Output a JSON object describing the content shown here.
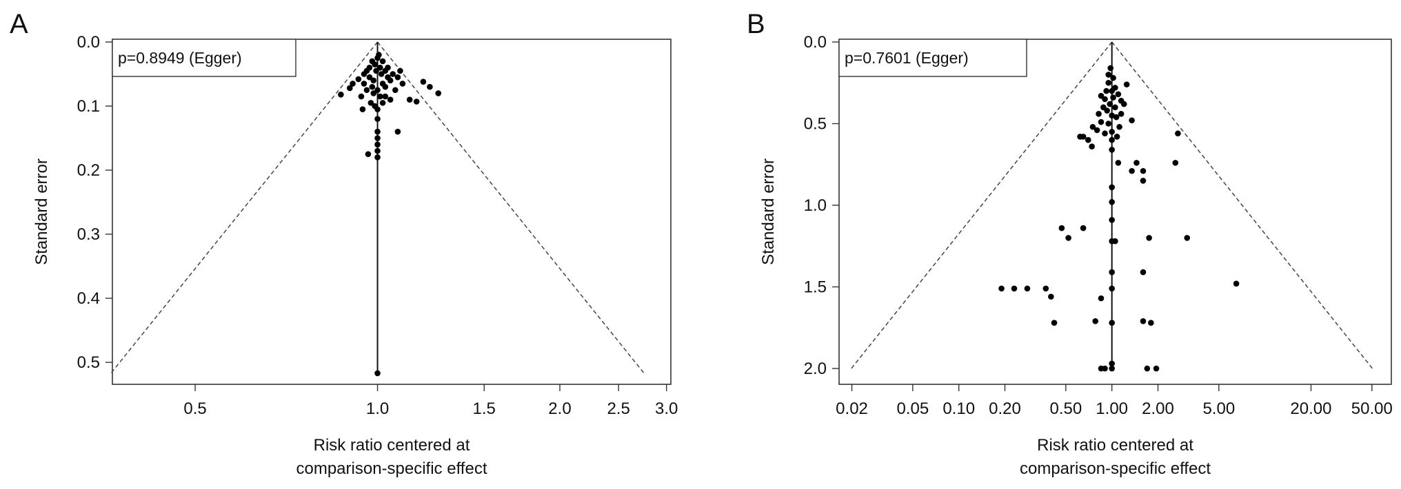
{
  "chart_data": [
    {
      "panel_label": "A",
      "type": "scatter",
      "subtype": "funnel plot",
      "annotation": "p=0.8949 (Egger)",
      "xlabel": [
        "Risk ratio centered at",
        "comparison-specific effect"
      ],
      "ylabel": "Standard error",
      "x_scale": "log",
      "xlim": [
        0.365,
        3.05
      ],
      "ylim": [
        0.0,
        0.53
      ],
      "y_inverted": true,
      "xticks": [
        0.5,
        1.0,
        1.5,
        2.0,
        2.5,
        3.0
      ],
      "xtick_labels": [
        "0.5",
        "1.0",
        "1.5",
        "2.0",
        "2.5",
        "3.0"
      ],
      "yticks": [
        0.0,
        0.1,
        0.2,
        0.3,
        0.4,
        0.5
      ],
      "ytick_labels": [
        "0.0",
        "0.1",
        "0.2",
        "0.3",
        "0.4",
        "0.5"
      ],
      "funnel": {
        "center": 1.0,
        "apex_se": 0.0,
        "base_se": 0.517
      },
      "points": [
        [
          1.0,
          0.517
        ],
        [
          1.0,
          0.18
        ],
        [
          1.0,
          0.17
        ],
        [
          1.0,
          0.16
        ],
        [
          1.0,
          0.15
        ],
        [
          1.0,
          0.14
        ],
        [
          1.0,
          0.12
        ],
        [
          1.0,
          0.105
        ],
        [
          0.965,
          0.175
        ],
        [
          1.08,
          0.14
        ],
        [
          0.945,
          0.105
        ],
        [
          0.87,
          0.082
        ],
        [
          0.9,
          0.072
        ],
        [
          0.91,
          0.065
        ],
        [
          0.93,
          0.058
        ],
        [
          0.95,
          0.05
        ],
        [
          0.96,
          0.045
        ],
        [
          0.94,
          0.085
        ],
        [
          0.975,
          0.095
        ],
        [
          0.99,
          0.1
        ],
        [
          1.02,
          0.095
        ],
        [
          1.05,
          0.09
        ],
        [
          1.13,
          0.09
        ],
        [
          1.16,
          0.093
        ],
        [
          1.19,
          0.062
        ],
        [
          1.22,
          0.07
        ],
        [
          1.26,
          0.08
        ],
        [
          1.1,
          0.065
        ],
        [
          1.07,
          0.075
        ],
        [
          1.04,
          0.055
        ],
        [
          1.06,
          0.05
        ],
        [
          1.03,
          0.045
        ],
        [
          1.01,
          0.04
        ],
        [
          0.99,
          0.035
        ],
        [
          0.98,
          0.03
        ],
        [
          1.0,
          0.025
        ],
        [
          1.02,
          0.03
        ],
        [
          1.005,
          0.02
        ],
        [
          0.995,
          0.045
        ],
        [
          0.97,
          0.055
        ],
        [
          0.95,
          0.065
        ],
        [
          0.96,
          0.075
        ],
        [
          0.985,
          0.08
        ],
        [
          1.01,
          0.085
        ],
        [
          1.03,
          0.07
        ],
        [
          1.05,
          0.06
        ],
        [
          1.08,
          0.055
        ],
        [
          1.09,
          0.045
        ],
        [
          1.02,
          0.065
        ],
        [
          0.98,
          0.07
        ],
        [
          1.0,
          0.075
        ],
        [
          1.03,
          0.085
        ],
        [
          0.97,
          0.04
        ],
        [
          1.04,
          0.04
        ],
        [
          1.015,
          0.05
        ],
        [
          0.985,
          0.06
        ]
      ]
    },
    {
      "panel_label": "B",
      "type": "scatter",
      "subtype": "funnel plot",
      "annotation": "p=0.7601 (Egger)",
      "xlabel": [
        "Risk ratio centered at",
        "comparison-specific effect"
      ],
      "ylabel": "Standard error",
      "x_scale": "log",
      "xlim": [
        0.0165,
        67
      ],
      "ylim": [
        0.0,
        2.08
      ],
      "y_inverted": true,
      "xticks": [
        0.02,
        0.05,
        0.1,
        0.2,
        0.5,
        1.0,
        2.0,
        5.0,
        20.0,
        50.0
      ],
      "xtick_labels": [
        "0.02",
        "0.05",
        "0.10",
        "0.20",
        "0.50",
        "1.00",
        "2.00",
        "5.00",
        "20.00",
        "50.00"
      ],
      "yticks": [
        0.0,
        0.5,
        1.0,
        1.5,
        2.0
      ],
      "ytick_labels": [
        "0.0",
        "0.5",
        "1.0",
        "1.5",
        "2.0"
      ],
      "funnel": {
        "center": 1.0,
        "apex_se": 0.0,
        "base_se": 2.0
      },
      "points": [
        [
          0.85,
          2.0
        ],
        [
          0.9,
          2.0
        ],
        [
          1.0,
          1.97
        ],
        [
          1.0,
          2.0
        ],
        [
          1.7,
          2.0
        ],
        [
          1.95,
          2.0
        ],
        [
          0.19,
          1.51
        ],
        [
          0.23,
          1.51
        ],
        [
          0.28,
          1.51
        ],
        [
          0.37,
          1.51
        ],
        [
          0.4,
          1.56
        ],
        [
          0.42,
          1.72
        ],
        [
          0.78,
          1.71
        ],
        [
          0.85,
          1.57
        ],
        [
          1.0,
          1.51
        ],
        [
          1.0,
          1.41
        ],
        [
          1.0,
          1.72
        ],
        [
          1.6,
          1.71
        ],
        [
          1.8,
          1.72
        ],
        [
          1.6,
          1.41
        ],
        [
          6.5,
          1.48
        ],
        [
          0.47,
          1.14
        ],
        [
          0.52,
          1.2
        ],
        [
          0.65,
          1.14
        ],
        [
          1.0,
          1.22
        ],
        [
          1.05,
          1.22
        ],
        [
          1.75,
          1.2
        ],
        [
          3.1,
          1.2
        ],
        [
          1.0,
          1.09
        ],
        [
          1.0,
          0.98
        ],
        [
          1.0,
          0.89
        ],
        [
          1.1,
          0.74
        ],
        [
          1.45,
          0.74
        ],
        [
          1.6,
          0.79
        ],
        [
          1.6,
          0.85
        ],
        [
          1.35,
          0.79
        ],
        [
          2.6,
          0.74
        ],
        [
          2.7,
          0.56
        ],
        [
          0.62,
          0.58
        ],
        [
          0.65,
          0.58
        ],
        [
          0.7,
          0.6
        ],
        [
          0.75,
          0.52
        ],
        [
          0.74,
          0.64
        ],
        [
          0.8,
          0.54
        ],
        [
          0.85,
          0.49
        ],
        [
          0.82,
          0.44
        ],
        [
          0.88,
          0.4
        ],
        [
          0.9,
          0.35
        ],
        [
          0.85,
          0.33
        ],
        [
          0.92,
          0.3
        ],
        [
          0.95,
          0.25
        ],
        [
          0.95,
          0.2
        ],
        [
          0.98,
          0.16
        ],
        [
          1.02,
          0.22
        ],
        [
          1.05,
          0.28
        ],
        [
          1.1,
          0.32
        ],
        [
          1.15,
          0.36
        ],
        [
          1.2,
          0.38
        ],
        [
          1.25,
          0.26
        ],
        [
          1.15,
          0.44
        ],
        [
          1.35,
          0.48
        ],
        [
          1.05,
          0.4
        ],
        [
          1.0,
          0.45
        ],
        [
          0.95,
          0.5
        ],
        [
          1.0,
          0.55
        ],
        [
          1.0,
          0.6
        ],
        [
          1.0,
          0.66
        ],
        [
          1.08,
          0.58
        ],
        [
          0.97,
          0.38
        ],
        [
          1.02,
          0.34
        ],
        [
          1.0,
          0.3
        ],
        [
          0.93,
          0.42
        ],
        [
          1.07,
          0.46
        ],
        [
          1.12,
          0.52
        ],
        [
          0.9,
          0.56
        ]
      ]
    }
  ]
}
